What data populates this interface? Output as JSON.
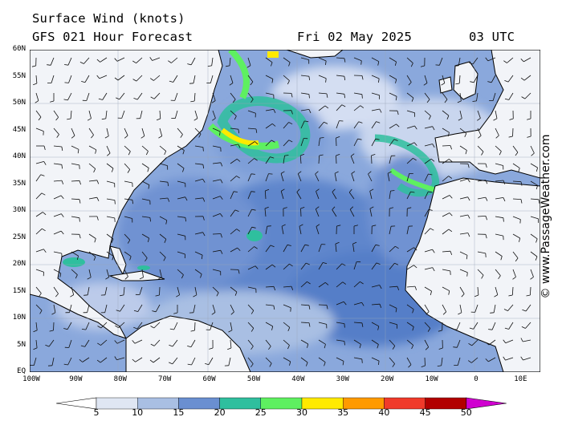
{
  "header": {
    "title": "Surface Wind (knots)",
    "model": "GFS 021 Hour Forecast",
    "date": "Fri 02 May 2025",
    "time": "03 UTC"
  },
  "map": {
    "region": "North Atlantic",
    "lat_labels": [
      "60N",
      "55N",
      "50N",
      "45N",
      "40N",
      "35N",
      "30N",
      "25N",
      "20N",
      "15N",
      "10N",
      "5N",
      "EQ"
    ],
    "lon_labels": [
      "100W",
      "90W",
      "80W",
      "70W",
      "60W",
      "50W",
      "40W",
      "30W",
      "20W",
      "10W",
      "0",
      "10E"
    ],
    "ocean_color": "#4f78c4",
    "land_color": "#f2f4f8"
  },
  "watermark": "© www.PassageWeather.com",
  "colorbar": {
    "ticks": [
      "5",
      "10",
      "15",
      "20",
      "25",
      "30",
      "35",
      "40",
      "45",
      "50"
    ],
    "colors": [
      "#ffffff",
      "#dfe6f3",
      "#a9bfe3",
      "#6a8fd1",
      "#2fbf9e",
      "#5ef060",
      "#ffea00",
      "#ff9a00",
      "#f03a2a",
      "#b20000",
      "#d000d0"
    ]
  }
}
